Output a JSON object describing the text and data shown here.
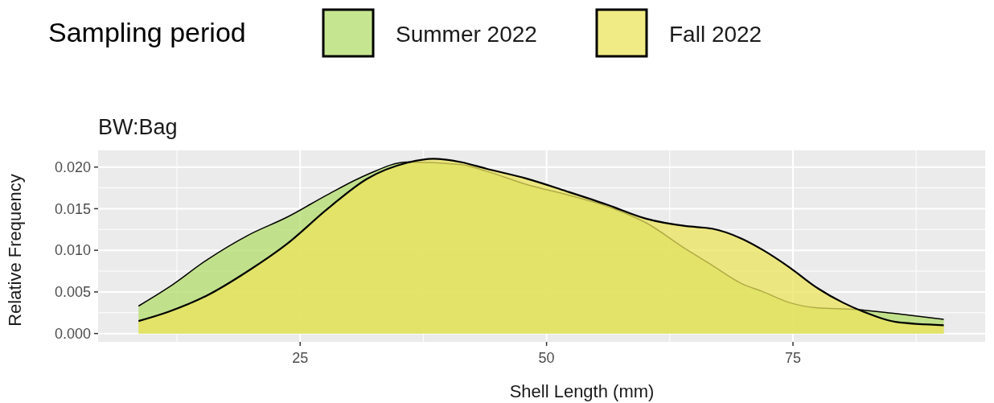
{
  "chart_data": {
    "type": "area",
    "title": "BW:Bag",
    "xlabel": "Shell Length (mm)",
    "ylabel": "Relative Frequency",
    "legend_title": "Sampling period",
    "legend": "top",
    "grid": true,
    "xlim": [
      4.5,
      94.5
    ],
    "xticks": [
      25,
      50,
      75
    ],
    "ylim": [
      -0.001,
      0.022
    ],
    "yticks": [
      {
        "value": 0,
        "label": "0.000"
      },
      {
        "value": 0.005,
        "label": "0.005"
      },
      {
        "value": 0.01,
        "label": "0.010"
      },
      {
        "value": 0.015,
        "label": "0.015"
      },
      {
        "value": 0.02,
        "label": "0.020"
      }
    ],
    "series": [
      {
        "name": "Summer 2022",
        "color": "#b3dc6c",
        "x": [
          8.6,
          11.6,
          15.6,
          19.7,
          23.7,
          27.8,
          31.8,
          35.8,
          41.3,
          43.9,
          48.0,
          52.0,
          56.1,
          60.1,
          64.2,
          66.8,
          69.8,
          72.0,
          74.7,
          77.3,
          81.4,
          85.4,
          90.3
        ],
        "values": [
          0.0033,
          0.0055,
          0.0089,
          0.0118,
          0.014,
          0.0167,
          0.0191,
          0.0206,
          0.0203,
          0.0195,
          0.0179,
          0.0167,
          0.0153,
          0.0133,
          0.0101,
          0.0082,
          0.006,
          0.005,
          0.0037,
          0.0031,
          0.0029,
          0.0024,
          0.0017
        ]
      },
      {
        "name": "Fall 2022",
        "color": "#ece45c",
        "x": [
          8.6,
          11.6,
          15.6,
          19.7,
          23.7,
          27.8,
          31.8,
          35.8,
          38.5,
          41.3,
          43.9,
          48.0,
          52.0,
          56.1,
          60.1,
          64.2,
          66.8,
          69.8,
          72.0,
          74.7,
          77.3,
          80.1,
          82.2,
          85.4,
          90.3
        ],
        "values": [
          0.0015,
          0.0026,
          0.0046,
          0.0075,
          0.0108,
          0.015,
          0.0186,
          0.0205,
          0.021,
          0.0206,
          0.0198,
          0.0186,
          0.0171,
          0.0155,
          0.0138,
          0.0129,
          0.0126,
          0.0114,
          0.01,
          0.0079,
          0.0056,
          0.0037,
          0.0026,
          0.0014,
          0.001
        ]
      }
    ]
  }
}
